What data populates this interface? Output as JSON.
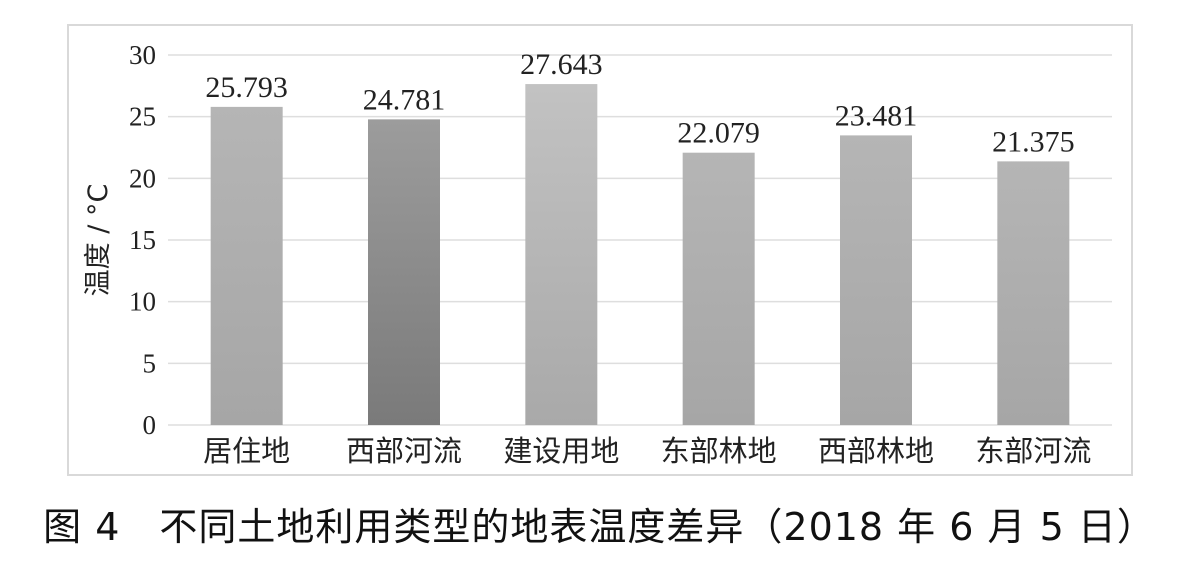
{
  "caption": "图 4　不同土地利用类型的地表温度差异（2018 年 6 月 5 日）",
  "chart_data": {
    "type": "bar",
    "title": "",
    "xlabel": "",
    "ylabel": "温度 / °C",
    "ylim": [
      0,
      30
    ],
    "yticks": [
      0,
      5,
      10,
      15,
      20,
      25,
      30
    ],
    "grid": true,
    "categories": [
      "居住地",
      "西部河流",
      "建设用地",
      "东部林地",
      "西部林地",
      "东部河流"
    ],
    "values": [
      25.793,
      24.781,
      27.643,
      22.079,
      23.481,
      21.375
    ],
    "data_labels": [
      "25.793",
      "24.781",
      "27.643",
      "22.079",
      "23.481",
      "21.375"
    ],
    "bar_colors": [
      [
        "#b5b5b5",
        "#a6a6a6"
      ],
      [
        "#9c9c9c",
        "#7a7a7a"
      ],
      [
        "#c2c2c2",
        "#a9a9a9"
      ],
      [
        "#b5b5b5",
        "#a6a6a6"
      ],
      [
        "#b5b5b5",
        "#a6a6a6"
      ],
      [
        "#b5b5b5",
        "#a6a6a6"
      ]
    ],
    "grid_color": "#dedede"
  }
}
